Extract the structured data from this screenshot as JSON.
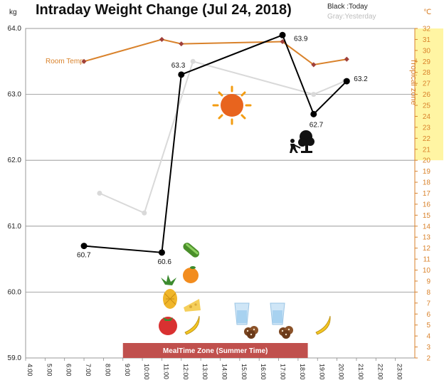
{
  "chart_data": {
    "type": "line",
    "title": "Intraday Weight Change (Jul 24, 2018)",
    "left_unit": "kg",
    "right_unit": "℃",
    "legend": {
      "today": "Black :Today",
      "yesterday": "Gray:Yesterday",
      "placement": "top-right"
    },
    "right_axis_band_label": "Tropical zone",
    "room_temp_label": "Room Temp.",
    "meal_zone_label": "MealTime Zone  (Summer Time)",
    "ylim": [
      59.0,
      64.0
    ],
    "y_ticks": [
      "64.0",
      "63.0",
      "62.0",
      "61.0",
      "60.0",
      "59.0"
    ],
    "y_tick_values": [
      64.0,
      63.0,
      62.0,
      61.0,
      60.0,
      59.0
    ],
    "y2lim": [
      2,
      32
    ],
    "y2_ticks": [
      32,
      31,
      30,
      29,
      28,
      27,
      26,
      25,
      24,
      23,
      22,
      21,
      20,
      19,
      18,
      17,
      16,
      15,
      14,
      13,
      12,
      11,
      10,
      9,
      8,
      7,
      6,
      5,
      4,
      3,
      2
    ],
    "tropical_zone": [
      20,
      32
    ],
    "xlim": [
      4,
      24
    ],
    "x_ticks": [
      "4:00",
      "5:00",
      "6:00",
      "7:00",
      "8:00",
      "9:00",
      "10:00",
      "11:00",
      "12:00",
      "13:00",
      "14:00",
      "15:00",
      "16:00",
      "17:00",
      "18:00",
      "19:00",
      "20:00",
      "21:00",
      "22:00",
      "23:00"
    ],
    "meal_zone_hours": [
      9.0,
      18.5
    ],
    "series": [
      {
        "name": "Today",
        "color": "#000000",
        "x": [
          7.0,
          11.0,
          12.0,
          17.2,
          18.8,
          20.5
        ],
        "y": [
          60.7,
          60.6,
          63.3,
          63.9,
          62.7,
          63.2
        ],
        "labels": [
          "60.7",
          "60.6",
          "63.3",
          "63.9",
          "62.7",
          "63.2"
        ]
      },
      {
        "name": "Yesterday",
        "color": "#d9d9d9",
        "x": [
          7.8,
          10.1,
          12.6,
          18.8,
          20.4
        ],
        "y": [
          61.5,
          61.2,
          63.5,
          63.0,
          63.2
        ]
      },
      {
        "name": "Room Temp.",
        "color": "#d9822b",
        "axis": "right",
        "x": [
          7.0,
          11.0,
          12.0,
          17.2,
          18.8,
          20.5
        ],
        "y": [
          29.0,
          31.0,
          30.6,
          30.8,
          28.7,
          29.2
        ]
      }
    ],
    "icons": [
      "sun-icon",
      "gardening-person-icon",
      "cucumber-icon",
      "orange-icon",
      "pineapple-icon",
      "cheese-icon",
      "tomato-icon",
      "banana-icon",
      "water-glass-icon",
      "cookie-icon"
    ]
  }
}
